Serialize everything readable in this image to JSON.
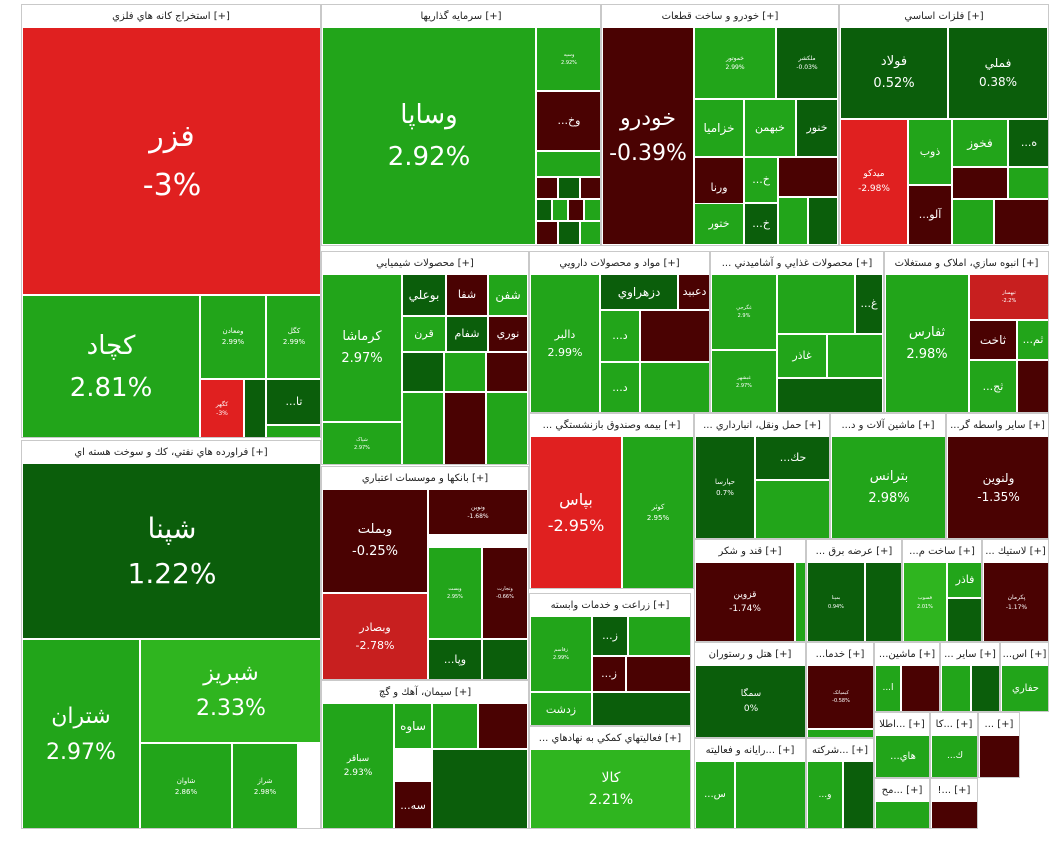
{
  "colors": {
    "dark_red": "#4a0202",
    "red": "#c81f1f",
    "bright_red": "#e02020",
    "dark_green": "#0b5e0b",
    "mid_green": "#1f8a1f",
    "green": "#22a51a",
    "light_green": "#2fb51f",
    "header_bg": "#ffffff",
    "border": "#c9c9c9"
  },
  "chart_data": {
    "type": "treemap",
    "title": "",
    "value_unit": "percent daily change",
    "sectors": [
      {
        "id": "s1",
        "title": "[+] استخراج کانه هاي فلزي",
        "tiles": [
          {
            "name": "فزر",
            "value": "-3%"
          },
          {
            "name": "کچاد",
            "value": "2.81%"
          },
          {
            "name": "ومعادن",
            "value": "2.99%"
          },
          {
            "name": "کگل",
            "value": "2.99%"
          },
          {
            "name": "کگهر",
            "value": "-3%"
          },
          {
            "name": "تا...",
            "value": ""
          }
        ]
      },
      {
        "id": "s2",
        "title": "[+] فراورده هاي نفتي، كك و سوخت هسته اي",
        "tiles": [
          {
            "name": "شپنا",
            "value": "1.22%"
          },
          {
            "name": "شتران",
            "value": "2.97%"
          },
          {
            "name": "شبريز",
            "value": "2.33%"
          },
          {
            "name": "شاوان",
            "value": "2.86%"
          },
          {
            "name": "شراز",
            "value": "2.98%"
          }
        ]
      },
      {
        "id": "s3",
        "title": "[+] سرمايه گذاريها",
        "tiles": [
          {
            "name": "وساپا",
            "value": "2.92%"
          },
          {
            "name": "وسپه",
            "value": "2.92%"
          },
          {
            "name": "وخ...",
            "value": ""
          }
        ]
      },
      {
        "id": "s4",
        "title": "[+] خودرو و ساخت قطعات",
        "tiles": [
          {
            "name": "خودرو",
            "value": "-0.39%"
          },
          {
            "name": "خموتور",
            "value": "2.99%"
          },
          {
            "name": "ملکشر",
            "value": "-0.03%"
          },
          {
            "name": "خزاميا",
            "value": ""
          },
          {
            "name": "خبهمن",
            "value": ""
          },
          {
            "name": "خنور",
            "value": ""
          },
          {
            "name": "ورنا",
            "value": ""
          },
          {
            "name": "خ...",
            "value": ""
          },
          {
            "name": "ختور",
            "value": ""
          },
          {
            "name": "خ...",
            "value": ""
          }
        ]
      },
      {
        "id": "s5",
        "title": "[+] فلزات اساسي",
        "tiles": [
          {
            "name": "فولاد",
            "value": "0.52%"
          },
          {
            "name": "فملي",
            "value": "0.38%"
          },
          {
            "name": "ميدکو",
            "value": "-2.98%"
          },
          {
            "name": "ذوب",
            "value": ""
          },
          {
            "name": "فخوز",
            "value": ""
          },
          {
            "name": "ه...",
            "value": ""
          },
          {
            "name": "آلو...",
            "value": ""
          }
        ]
      },
      {
        "id": "s6",
        "title": "[+] محصولات شيميايي",
        "tiles": [
          {
            "name": "کرماشا",
            "value": "2.97%"
          },
          {
            "name": "بوعلي",
            "value": ""
          },
          {
            "name": "شفا",
            "value": ""
          },
          {
            "name": "شفن",
            "value": ""
          },
          {
            "name": "قرن",
            "value": ""
          },
          {
            "name": "شفام",
            "value": ""
          },
          {
            "name": "نوري",
            "value": ""
          },
          {
            "name": "شپاک",
            "value": "2.97%"
          }
        ]
      },
      {
        "id": "s7",
        "title": "[+] مواد و محصولات دارويي",
        "tiles": [
          {
            "name": "دالبر",
            "value": "2.99%"
          },
          {
            "name": "دزهراوي",
            "value": ""
          },
          {
            "name": "دعبيد",
            "value": ""
          },
          {
            "name": "د...",
            "value": ""
          },
          {
            "name": "د...",
            "value": ""
          }
        ]
      },
      {
        "id": "s8",
        "title": "[+] محصولات غذايي و آشاميدني ...",
        "tiles": [
          {
            "name": "غپونه",
            "value": "2.98%"
          },
          {
            "name": "غ...",
            "value": ""
          },
          {
            "name": "غگرجي",
            "value": "2.9%"
          },
          {
            "name": "غاذر",
            "value": ""
          },
          {
            "name": "غبشهر",
            "value": "2.97%"
          }
        ]
      },
      {
        "id": "s9",
        "title": "[+] انبوه سازي، املاک و مستغلات",
        "tiles": [
          {
            "name": "ثفارس",
            "value": "2.98%"
          },
          {
            "name": "ثبهساز",
            "value": "-2.2%"
          },
          {
            "name": "ثاخت",
            "value": ""
          },
          {
            "name": "ثم...",
            "value": ""
          },
          {
            "name": "ثج...",
            "value": ""
          }
        ]
      },
      {
        "id": "s10",
        "title": "[+] بانکها و موسسات اعتباري",
        "tiles": [
          {
            "name": "وبملت",
            "value": "-0.25%"
          },
          {
            "name": "ونوين",
            "value": "-1.68%"
          },
          {
            "name": "وبصادر",
            "value": "-2.78%"
          },
          {
            "name": "وپست",
            "value": "2.95%"
          },
          {
            "name": "وتجارت",
            "value": "-0.66%"
          },
          {
            "name": "وپا...",
            "value": ""
          }
        ]
      },
      {
        "id": "s11",
        "title": "[+] بيمه وصندوق بازنشستگي ...",
        "tiles": [
          {
            "name": "بپاس",
            "value": "-2.95%"
          },
          {
            "name": "کوثر",
            "value": "2.95%"
          }
        ]
      },
      {
        "id": "s12",
        "title": "[+] حمل ونقل، انبارداري ...",
        "tiles": [
          {
            "name": "حپارسا",
            "value": "0.7%"
          },
          {
            "name": "حك...",
            "value": ""
          }
        ]
      },
      {
        "id": "s13",
        "title": "[+] ماشين آلات و د...",
        "tiles": [
          {
            "name": "بترانس",
            "value": "2.98%"
          }
        ]
      },
      {
        "id": "s14",
        "title": "[+] ساير واسطه گر...",
        "tiles": [
          {
            "name": "ولنوين",
            "value": "-1.35%"
          }
        ]
      },
      {
        "id": "s15",
        "title": "[+] سيمان، آهك و گچ",
        "tiles": [
          {
            "name": "ساوه",
            "value": ""
          },
          {
            "name": "سباقر",
            "value": "2.93%"
          },
          {
            "name": "سه...",
            "value": ""
          }
        ]
      },
      {
        "id": "s16",
        "title": "[+] زراعت و خدمات وابسته",
        "tiles": [
          {
            "name": "زقاسم",
            "value": "2.99%"
          },
          {
            "name": "ز...",
            "value": ""
          },
          {
            "name": "ز...",
            "value": ""
          },
          {
            "name": "زدشت",
            "value": ""
          }
        ]
      },
      {
        "id": "s17",
        "title": "[+] فعاليتهاي كمكي به نهادهاي ...",
        "tiles": [
          {
            "name": "کالا",
            "value": "2.21%"
          }
        ]
      },
      {
        "id": "s18",
        "title": "[+] قند و شكر",
        "tiles": [
          {
            "name": "قزوين",
            "value": "-1.74%"
          }
        ]
      },
      {
        "id": "s19",
        "title": "[+] عرضه برق ...",
        "tiles": [
          {
            "name": "بمپنا",
            "value": "0.94%"
          }
        ]
      },
      {
        "id": "s20",
        "title": "[+] ساخت م...",
        "tiles": [
          {
            "name": "فاذر",
            "value": ""
          },
          {
            "name": "فسوب",
            "value": "2.01%"
          }
        ]
      },
      {
        "id": "s21",
        "title": "[+] لاستيك ...",
        "tiles": [
          {
            "name": "پکرمان",
            "value": "-1.17%"
          }
        ]
      },
      {
        "id": "s22",
        "title": "[+] هتل و رستوران",
        "tiles": [
          {
            "name": "سمگا",
            "value": "0%"
          }
        ]
      },
      {
        "id": "s23",
        "title": "[+] خدما...",
        "tiles": [
          {
            "name": "کيمياتک",
            "value": "-0.58%"
          }
        ]
      },
      {
        "id": "s24",
        "title": "[+] ماشين...",
        "tiles": [
          {
            "name": "ا...",
            "value": ""
          }
        ]
      },
      {
        "id": "s25",
        "title": "[+] ساير ...",
        "tiles": []
      },
      {
        "id": "s26",
        "title": "[+] اس...",
        "tiles": [
          {
            "name": "حفاري",
            "value": ""
          }
        ]
      },
      {
        "id": "s27",
        "title": "[+] ...رايانه و فعاليته",
        "tiles": [
          {
            "name": "س...",
            "value": ""
          }
        ]
      },
      {
        "id": "s28",
        "title": "[+] ...شركته",
        "tiles": [
          {
            "name": "و...",
            "value": ""
          }
        ]
      },
      {
        "id": "s29",
        "title": "[+] ...اطلا",
        "tiles": [
          {
            "name": "هاي...",
            "value": ""
          }
        ]
      },
      {
        "id": "s30",
        "title": "[+] ...كا",
        "tiles": [
          {
            "name": "ك...",
            "value": ""
          }
        ]
      },
      {
        "id": "s31",
        "title": "[+] ...",
        "tiles": []
      },
      {
        "id": "s32",
        "title": "[+] ...مح",
        "tiles": []
      },
      {
        "id": "s33",
        "title": "[+] ...!",
        "tiles": []
      }
    ]
  }
}
